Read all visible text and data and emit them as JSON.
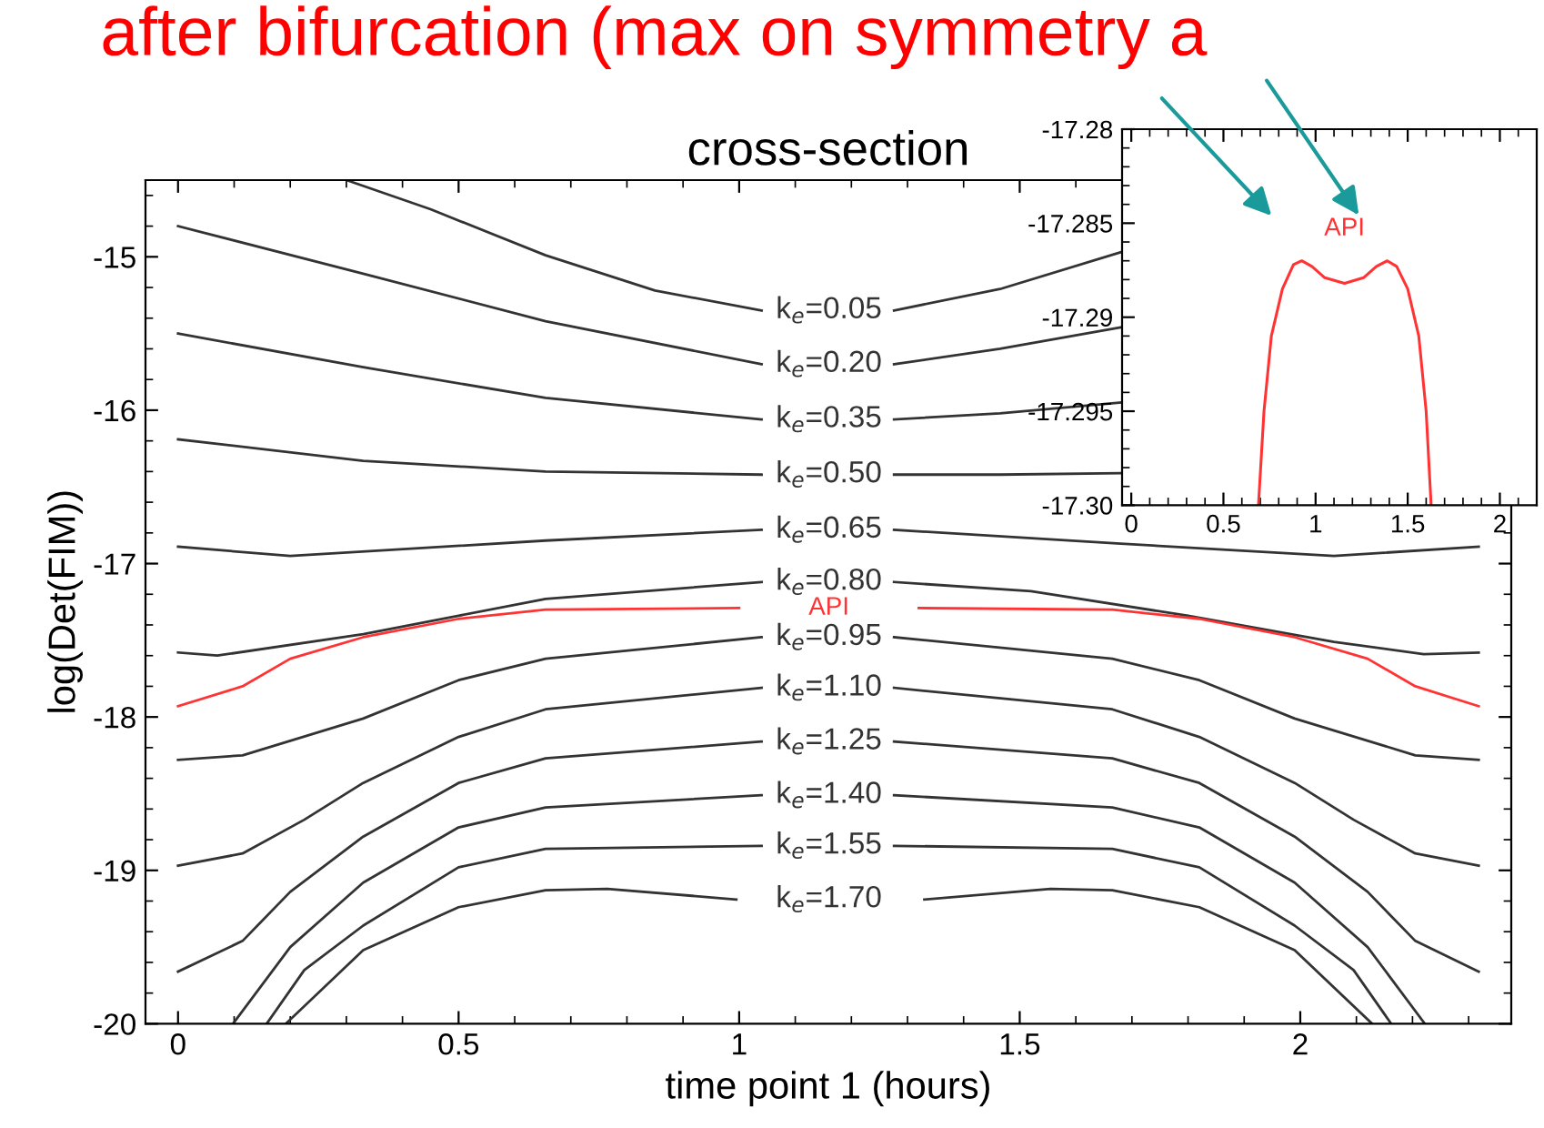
{
  "chart_data": [
    {
      "type": "line",
      "title": "cross-section",
      "xlabel": "time point 1 (hours)",
      "ylabel": "log(Det(FIM))",
      "annotations": [
        "after bifurcation (max on symmetry a"
      ],
      "xlim": [
        -0.058,
        2.376
      ],
      "ylim": [
        -20,
        -14.5
      ],
      "xticks": [
        0,
        0.5,
        1,
        1.5,
        2
      ],
      "yticks": [
        -20,
        -19,
        -18,
        -17,
        -16,
        -15
      ],
      "grid": false,
      "legend": false,
      "series": [
        {
          "name": "k$_{e}$=0.05",
          "color": "#333333",
          "x": [
            0.3,
            0.45,
            0.655,
            0.85,
            1.04,
            1.16,
            1.276,
            1.465,
            1.68
          ],
          "values": [
            -14.5,
            -14.69,
            -14.99,
            -15.22,
            -15.35,
            null,
            -15.35,
            -15.21,
            -14.97
          ]
        },
        {
          "name": "k$_{e}$=0.20",
          "color": "#333333",
          "x": [
            0,
            0.33,
            0.655,
            1.04,
            1.16,
            1.276,
            1.465,
            1.68
          ],
          "values": [
            -14.8,
            -15.11,
            -15.42,
            -15.7,
            null,
            -15.7,
            -15.6,
            -15.46
          ]
        },
        {
          "name": "k$_{e}$=0.35",
          "color": "#333333",
          "x": [
            0,
            0.33,
            0.655,
            1.04,
            1.16,
            1.276,
            1.465,
            1.68
          ],
          "values": [
            -15.5,
            -15.72,
            -15.92,
            -16.06,
            null,
            -16.06,
            -16.02,
            -15.95
          ]
        },
        {
          "name": "k$_{e}$=0.50",
          "color": "#333333",
          "x": [
            0,
            0.33,
            0.655,
            1.04,
            1.16,
            1.276,
            1.465,
            1.68
          ],
          "values": [
            -16.19,
            -16.33,
            -16.4,
            -16.42,
            null,
            -16.42,
            -16.42,
            -16.41
          ]
        },
        {
          "name": "k$_{e}$=0.65",
          "color": "#333333",
          "x": [
            0,
            0.2,
            0.655,
            1.04,
            1.16,
            1.276,
            1.68,
            2.06,
            2.318
          ],
          "values": [
            -16.89,
            -16.95,
            -16.85,
            -16.78,
            null,
            -16.78,
            -16.87,
            -16.95,
            -16.89
          ]
        },
        {
          "name": "k$_{e}$=0.80",
          "color": "#333333",
          "x": [
            0,
            0.07,
            0.33,
            0.5,
            0.655,
            1.04,
            1.16,
            1.276,
            1.52,
            1.8,
            2.06,
            2.22,
            2.318
          ],
          "values": [
            -17.58,
            -17.6,
            -17.46,
            -17.34,
            -17.23,
            -17.12,
            null,
            -17.12,
            -17.18,
            -17.34,
            -17.51,
            -17.59,
            -17.58
          ]
        },
        {
          "name": "API",
          "color": "#ff3333",
          "x": [
            0,
            0.115,
            0.2,
            0.33,
            0.5,
            0.655,
            1.0,
            1.16,
            1.32,
            1.665,
            1.82,
            1.99,
            2.12,
            2.205,
            2.318
          ],
          "values": [
            -17.93,
            -17.8,
            -17.62,
            -17.48,
            -17.36,
            -17.3,
            -17.29,
            null,
            -17.29,
            -17.3,
            -17.36,
            -17.48,
            -17.62,
            -17.8,
            -17.93
          ]
        },
        {
          "name": "k$_{e}$=0.95",
          "color": "#333333",
          "x": [
            0,
            0.115,
            0.33,
            0.5,
            0.655,
            1.04,
            1.16,
            1.276,
            1.665,
            1.82,
            1.99,
            2.205,
            2.318
          ],
          "values": [
            -18.28,
            -18.25,
            -18.01,
            -17.76,
            -17.62,
            -17.48,
            null,
            -17.48,
            -17.62,
            -17.76,
            -18.01,
            -18.25,
            -18.28
          ]
        },
        {
          "name": "k$_{e}$=1.10",
          "color": "#333333",
          "x": [
            0,
            0.115,
            0.225,
            0.33,
            0.5,
            0.655,
            1.04,
            1.16,
            1.276,
            1.665,
            1.82,
            1.99,
            2.095,
            2.205,
            2.318
          ],
          "values": [
            -18.97,
            -18.89,
            -18.67,
            -18.43,
            -18.13,
            -17.95,
            -17.81,
            null,
            -17.81,
            -17.95,
            -18.13,
            -18.43,
            -18.67,
            -18.89,
            -18.97
          ]
        },
        {
          "name": "k$_{e}$=1.25",
          "color": "#333333",
          "x": [
            0,
            0.115,
            0.2,
            0.33,
            0.5,
            0.655,
            1.04,
            1.16,
            1.276,
            1.665,
            1.82,
            1.99,
            2.12,
            2.205,
            2.318
          ],
          "values": [
            -19.66,
            -19.46,
            -19.14,
            -18.78,
            -18.43,
            -18.27,
            -18.16,
            null,
            -18.16,
            -18.27,
            -18.43,
            -18.78,
            -19.14,
            -19.46,
            -19.66
          ]
        },
        {
          "name": "k$_{e}$=1.40",
          "color": "#333333",
          "x": [
            0.098,
            0.2,
            0.33,
            0.5,
            0.655,
            1.04,
            1.16,
            1.276,
            1.665,
            1.82,
            1.99,
            2.12,
            2.222
          ],
          "values": [
            -20,
            -19.5,
            -19.08,
            -18.72,
            -18.59,
            -18.51,
            null,
            -18.51,
            -18.59,
            -18.72,
            -19.08,
            -19.5,
            -20
          ]
        },
        {
          "name": "k$_{e}$=1.55",
          "color": "#333333",
          "x": [
            0.158,
            0.225,
            0.33,
            0.5,
            0.655,
            1.04,
            1.16,
            1.276,
            1.665,
            1.82,
            1.99,
            2.095,
            2.162
          ],
          "values": [
            -20,
            -19.65,
            -19.36,
            -18.98,
            -18.86,
            -18.84,
            null,
            -18.84,
            -18.86,
            -18.98,
            -19.36,
            -19.65,
            -20
          ]
        },
        {
          "name": "k$_{e}$=1.70",
          "color": "#333333",
          "x": [
            0.192,
            0.33,
            0.5,
            0.655,
            0.765,
            0.995,
            1.16,
            1.33,
            1.555,
            1.665,
            1.82,
            1.99,
            2.128
          ],
          "values": [
            -20,
            -19.52,
            -19.24,
            -19.13,
            -19.12,
            -19.19,
            null,
            -19.19,
            -19.12,
            -19.13,
            -19.24,
            -19.52,
            -20
          ]
        }
      ]
    },
    {
      "type": "line",
      "xlim": [
        -0.05,
        2.2
      ],
      "ylim": [
        -17.3,
        -17.28
      ],
      "xticks": [
        0,
        0.5,
        1,
        1.5,
        2
      ],
      "yticks": [
        {
          "value": -17.3,
          "label": "-17.30"
        },
        -17.295,
        -17.29,
        -17.285,
        -17.28
      ],
      "grid": false,
      "legend": false,
      "series": [
        {
          "name": "API",
          "color": "#ff3333",
          "x": [
            0.69,
            0.72,
            0.76,
            0.82,
            0.88,
            0.925,
            0.98,
            1.05,
            1.157,
            1.26,
            1.33,
            1.389,
            1.44,
            1.5,
            1.56,
            1.6,
            1.627
          ],
          "values": [
            -17.3,
            -17.295,
            -17.291,
            -17.2885,
            -17.2872,
            -17.287,
            -17.2873,
            -17.2879,
            -17.2882,
            -17.2879,
            -17.2873,
            -17.287,
            -17.2873,
            -17.2885,
            -17.291,
            -17.295,
            -17.3
          ]
        }
      ]
    }
  ]
}
